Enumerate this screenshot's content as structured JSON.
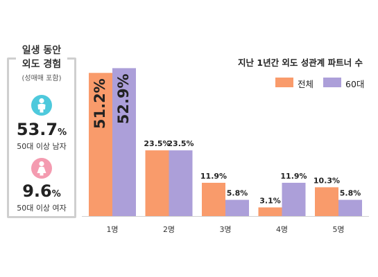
{
  "side_panel": {
    "title_line1": "일생 동안",
    "title_line2": "외도 경험",
    "subtitle": "(성매매 포함)",
    "male": {
      "icon": "male-person-icon",
      "value": "53.7",
      "unit": "%",
      "label": "50대 이상 남자",
      "color": "#4ec9dc"
    },
    "female": {
      "icon": "female-person-icon",
      "value": "9.6",
      "unit": "%",
      "label": "50대 이상 여자",
      "color": "#f49bb0"
    }
  },
  "chart_data": {
    "type": "bar",
    "title": "지난 1년간 외도 성관계 파트너 수",
    "categories": [
      "1명",
      "2명",
      "3명",
      "4명",
      "5명"
    ],
    "series": [
      {
        "name": "전체",
        "values": [
          51.2,
          23.5,
          11.9,
          3.1,
          10.3
        ],
        "labels": [
          "51.2%",
          "23.5%",
          "11.9%",
          "3.1%",
          "10.3%"
        ],
        "color": "#f99b6b"
      },
      {
        "name": "60대",
        "values": [
          52.9,
          23.5,
          5.8,
          11.9,
          5.8
        ],
        "labels": [
          "52.9%",
          "23.5%",
          "5.8%",
          "11.9%",
          "5.8%"
        ],
        "color": "#ac9fd9"
      }
    ],
    "ylim": [
      0,
      53
    ],
    "grid": false,
    "legend": "top-right"
  }
}
